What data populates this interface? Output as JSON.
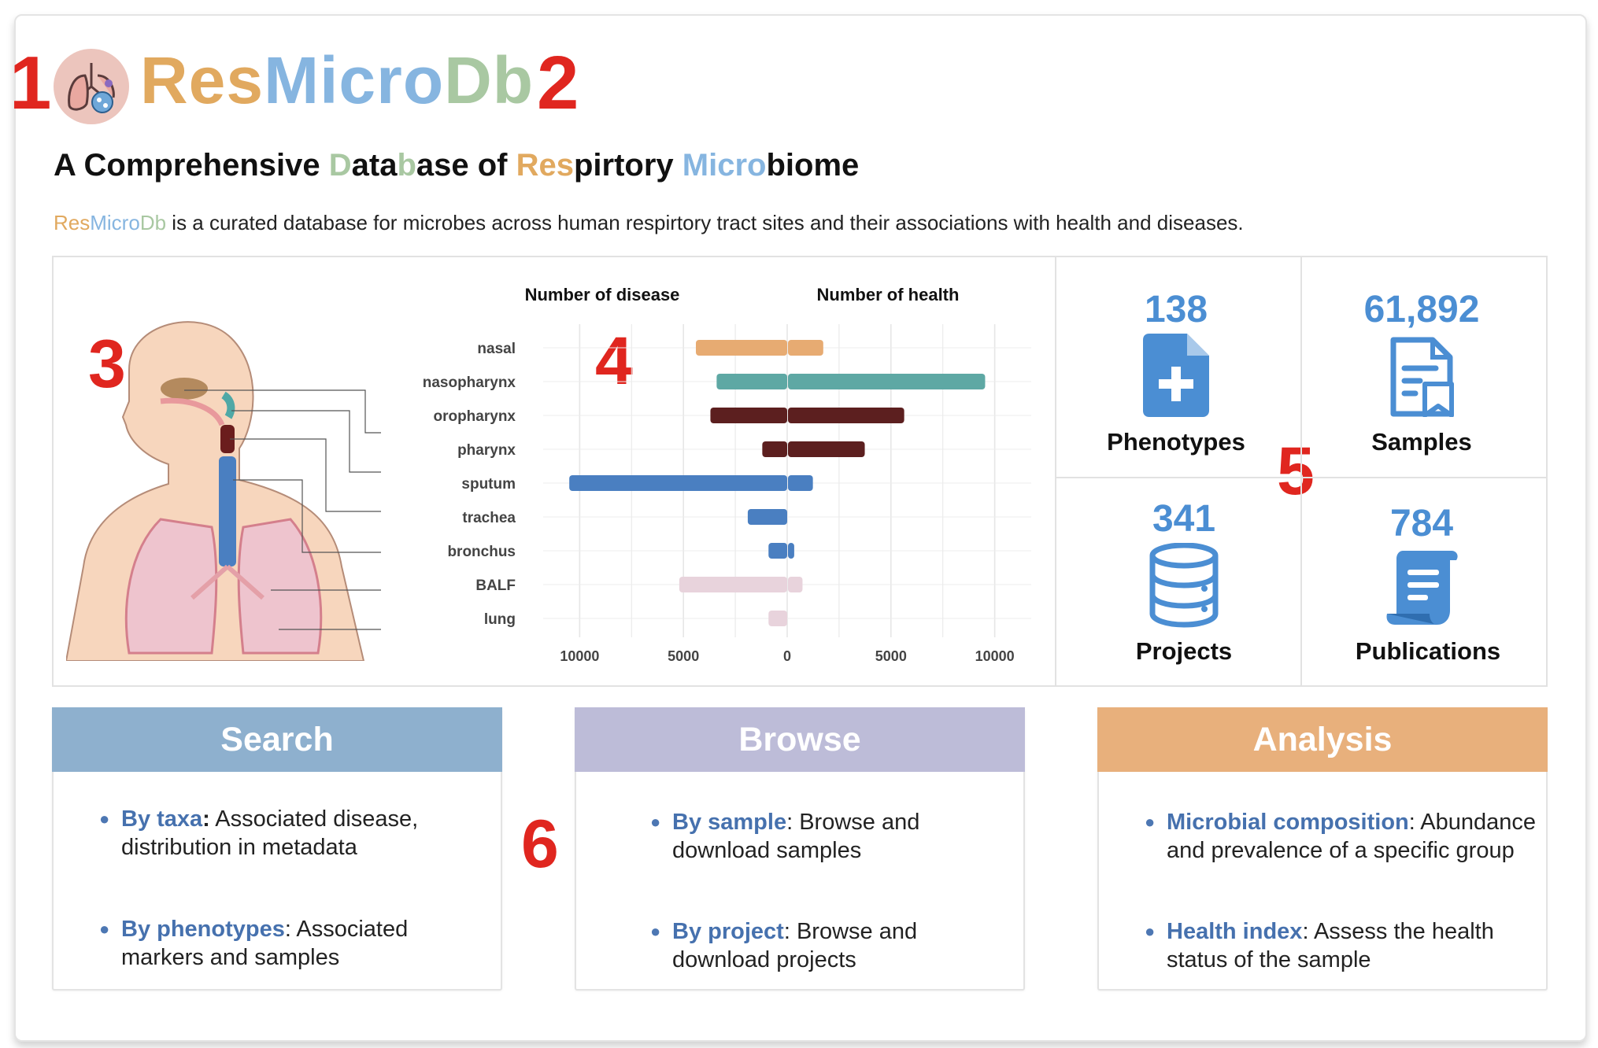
{
  "markers": [
    "1",
    "2",
    "3",
    "4",
    "5",
    "6"
  ],
  "brand": {
    "parts": [
      "Res",
      "Micro",
      "Db"
    ],
    "logo_icon": "lungs-microbe-icon"
  },
  "headline": {
    "segments": [
      {
        "text": "A Comprehensive ",
        "color": "#111111"
      },
      {
        "text": "D",
        "color": "#a9c8a2"
      },
      {
        "text": "ata",
        "color": "#111111"
      },
      {
        "text": "b",
        "color": "#a9c8a2"
      },
      {
        "text": "ase of ",
        "color": "#111111"
      },
      {
        "text": "Res",
        "color": "#e1a95f"
      },
      {
        "text": "pirtory ",
        "color": "#111111"
      },
      {
        "text": "Micro",
        "color": "#86b5e0"
      },
      {
        "text": "biome",
        "color": "#111111"
      }
    ]
  },
  "tagline": {
    "brand_parts": [
      "Res",
      "Micro",
      "Db"
    ],
    "text": " is a curated database for microbes across human respirtory tract sites and their associations with health and diseases."
  },
  "chart_data": {
    "type": "bar",
    "orientation": "horizontal-diverging",
    "left_title": "Number of disease",
    "right_title": "Number of health",
    "categories": [
      "nasal",
      "nasopharynx",
      "oropharynx",
      "pharynx",
      "sputum",
      "trachea",
      "bronchus",
      "BALF",
      "lung"
    ],
    "series": [
      {
        "name": "Number of disease",
        "values": [
          4400,
          3400,
          3700,
          1200,
          10500,
          1900,
          900,
          5200,
          900
        ]
      },
      {
        "name": "Number of health",
        "values": [
          1700,
          9500,
          5600,
          3700,
          1200,
          0,
          300,
          700,
          0
        ]
      }
    ],
    "colors": [
      "#e7ab72",
      "#5ea8a4",
      "#5c1f1f",
      "#5c1f1f",
      "#4a7fc1",
      "#4a7fc1",
      "#4a7fc1",
      "#e8d3dc",
      "#e8d3dc"
    ],
    "ticks": [
      "10000",
      "5000",
      "0",
      "5000",
      "10000"
    ],
    "xlim": [
      -11000,
      11000
    ],
    "grid": true
  },
  "stats": [
    {
      "value": "138",
      "label": "Phenotypes",
      "icon": "medical-document-plus-icon"
    },
    {
      "value": "61,892",
      "label": "Samples",
      "icon": "document-bookmark-icon"
    },
    {
      "value": "341",
      "label": "Projects",
      "icon": "database-icon"
    },
    {
      "value": "784",
      "label": "Publications",
      "icon": "scroll-icon"
    }
  ],
  "features": [
    {
      "title": "Search",
      "color": "#8eb0ce",
      "items": [
        {
          "key": "By taxa",
          "sep": ":",
          "text": " Associated disease, distribution in metadata"
        },
        {
          "key": "By phenotypes",
          "sep": ":",
          "text": " Associated markers and samples"
        }
      ]
    },
    {
      "title": "Browse",
      "color": "#bdbcd8",
      "items": [
        {
          "key": "By sample",
          "sep": ":",
          "text": " Browse and download samples"
        },
        {
          "key": "By project",
          "sep": ":",
          "text": " Browse and download projects"
        }
      ]
    },
    {
      "title": "Analysis",
      "color": "#e8b07c",
      "items": [
        {
          "key": "Microbial composition",
          "sep": ":",
          "text": " Abundance and prevalence of a specific group"
        },
        {
          "key": "Health index",
          "sep": ":",
          "text": " Assess the health status of the sample"
        }
      ]
    }
  ]
}
